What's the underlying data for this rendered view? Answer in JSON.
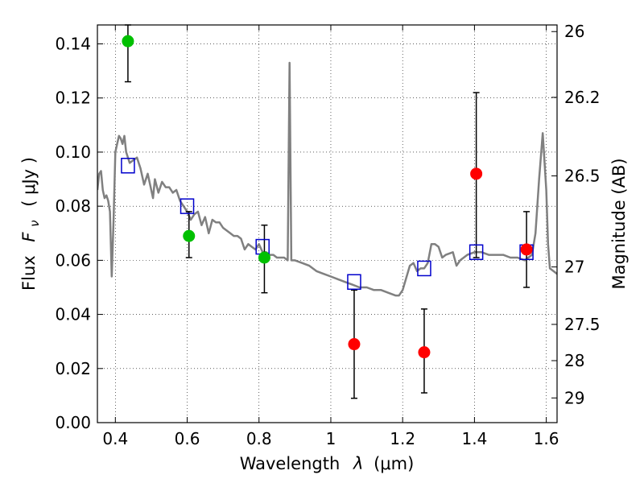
{
  "chart_data": {
    "type": "scatter",
    "xlabel_text": "Wavelength",
    "xlabel_symbol": "λ",
    "xlabel_unit": "(μm)",
    "ylabel_text": "Flux",
    "ylabel_symbol": "F",
    "ylabel_subscript": "ν",
    "ylabel_unit": "( μJy )",
    "y2label": "Magnitude (AB)",
    "xlim": [
      0.35,
      1.63
    ],
    "ylim": [
      0.0,
      0.147
    ],
    "grid": true,
    "xticks": [
      {
        "value": 0.4,
        "label": "0.4"
      },
      {
        "value": 0.6,
        "label": "0.6"
      },
      {
        "value": 0.8,
        "label": "0.8"
      },
      {
        "value": 1.0,
        "label": "1"
      },
      {
        "value": 1.2,
        "label": "1.2"
      },
      {
        "value": 1.4,
        "label": "1.4"
      },
      {
        "value": 1.6,
        "label": "1.6"
      }
    ],
    "yticks": [
      {
        "value": 0.0,
        "label": "0.00"
      },
      {
        "value": 0.02,
        "label": "0.02"
      },
      {
        "value": 0.04,
        "label": "0.04"
      },
      {
        "value": 0.06,
        "label": "0.06"
      },
      {
        "value": 0.08,
        "label": "0.08"
      },
      {
        "value": 0.1,
        "label": "0.10"
      },
      {
        "value": 0.12,
        "label": "0.12"
      },
      {
        "value": 0.14,
        "label": "0.14"
      }
    ],
    "y2ticks": [
      {
        "mag": 26,
        "label": "26"
      },
      {
        "mag": 26.2,
        "label": "26.2"
      },
      {
        "mag": 26.5,
        "label": "26.5"
      },
      {
        "mag": 27,
        "label": "27"
      },
      {
        "mag": 27.5,
        "label": "27.5"
      },
      {
        "mag": 28,
        "label": "28"
      },
      {
        "mag": 29,
        "label": "29"
      }
    ],
    "spectrum": {
      "color": "#808080",
      "points": [
        [
          0.35,
          0.086
        ],
        [
          0.355,
          0.092
        ],
        [
          0.36,
          0.093
        ],
        [
          0.365,
          0.086
        ],
        [
          0.37,
          0.083
        ],
        [
          0.375,
          0.084
        ],
        [
          0.38,
          0.082
        ],
        [
          0.385,
          0.078
        ],
        [
          0.39,
          0.054
        ],
        [
          0.395,
          0.075
        ],
        [
          0.4,
          0.1
        ],
        [
          0.405,
          0.103
        ],
        [
          0.41,
          0.106
        ],
        [
          0.415,
          0.105
        ],
        [
          0.42,
          0.103
        ],
        [
          0.425,
          0.106
        ],
        [
          0.43,
          0.1
        ],
        [
          0.44,
          0.096
        ],
        [
          0.45,
          0.097
        ],
        [
          0.46,
          0.098
        ],
        [
          0.47,
          0.094
        ],
        [
          0.48,
          0.088
        ],
        [
          0.49,
          0.092
        ],
        [
          0.5,
          0.086
        ],
        [
          0.505,
          0.083
        ],
        [
          0.51,
          0.09
        ],
        [
          0.52,
          0.085
        ],
        [
          0.53,
          0.089
        ],
        [
          0.54,
          0.087
        ],
        [
          0.55,
          0.087
        ],
        [
          0.56,
          0.085
        ],
        [
          0.57,
          0.086
        ],
        [
          0.58,
          0.082
        ],
        [
          0.59,
          0.08
        ],
        [
          0.6,
          0.078
        ],
        [
          0.61,
          0.075
        ],
        [
          0.62,
          0.077
        ],
        [
          0.63,
          0.078
        ],
        [
          0.64,
          0.073
        ],
        [
          0.65,
          0.076
        ],
        [
          0.66,
          0.07
        ],
        [
          0.67,
          0.075
        ],
        [
          0.68,
          0.074
        ],
        [
          0.69,
          0.074
        ],
        [
          0.7,
          0.072
        ],
        [
          0.71,
          0.071
        ],
        [
          0.72,
          0.07
        ],
        [
          0.73,
          0.069
        ],
        [
          0.74,
          0.069
        ],
        [
          0.75,
          0.068
        ],
        [
          0.76,
          0.064
        ],
        [
          0.77,
          0.066
        ],
        [
          0.78,
          0.065
        ],
        [
          0.79,
          0.064
        ],
        [
          0.8,
          0.066
        ],
        [
          0.81,
          0.063
        ],
        [
          0.82,
          0.063
        ],
        [
          0.83,
          0.062
        ],
        [
          0.84,
          0.062
        ],
        [
          0.85,
          0.061
        ],
        [
          0.86,
          0.061
        ],
        [
          0.87,
          0.061
        ],
        [
          0.88,
          0.06
        ],
        [
          0.885,
          0.133
        ],
        [
          0.89,
          0.06
        ],
        [
          0.9,
          0.06
        ],
        [
          0.92,
          0.059
        ],
        [
          0.94,
          0.058
        ],
        [
          0.96,
          0.056
        ],
        [
          0.98,
          0.055
        ],
        [
          1.0,
          0.054
        ],
        [
          1.02,
          0.053
        ],
        [
          1.04,
          0.052
        ],
        [
          1.06,
          0.051
        ],
        [
          1.08,
          0.05
        ],
        [
          1.1,
          0.05
        ],
        [
          1.12,
          0.049
        ],
        [
          1.14,
          0.049
        ],
        [
          1.16,
          0.048
        ],
        [
          1.18,
          0.047
        ],
        [
          1.19,
          0.047
        ],
        [
          1.2,
          0.049
        ],
        [
          1.22,
          0.058
        ],
        [
          1.23,
          0.059
        ],
        [
          1.24,
          0.056
        ],
        [
          1.25,
          0.057
        ],
        [
          1.26,
          0.057
        ],
        [
          1.27,
          0.059
        ],
        [
          1.28,
          0.066
        ],
        [
          1.29,
          0.066
        ],
        [
          1.3,
          0.065
        ],
        [
          1.31,
          0.061
        ],
        [
          1.32,
          0.062
        ],
        [
          1.34,
          0.063
        ],
        [
          1.35,
          0.058
        ],
        [
          1.36,
          0.06
        ],
        [
          1.38,
          0.062
        ],
        [
          1.4,
          0.063
        ],
        [
          1.42,
          0.063
        ],
        [
          1.44,
          0.062
        ],
        [
          1.46,
          0.062
        ],
        [
          1.48,
          0.062
        ],
        [
          1.5,
          0.061
        ],
        [
          1.52,
          0.061
        ],
        [
          1.54,
          0.06
        ],
        [
          1.56,
          0.062
        ],
        [
          1.57,
          0.07
        ],
        [
          1.58,
          0.09
        ],
        [
          1.59,
          0.107
        ],
        [
          1.6,
          0.086
        ],
        [
          1.605,
          0.066
        ],
        [
          1.61,
          0.057
        ],
        [
          1.62,
          0.056
        ],
        [
          1.63,
          0.055
        ]
      ]
    },
    "model_photometry": {
      "marker": "open-square",
      "color": "#0000cc",
      "points": [
        {
          "x": 0.435,
          "y": 0.095
        },
        {
          "x": 0.6,
          "y": 0.08
        },
        {
          "x": 0.81,
          "y": 0.065
        },
        {
          "x": 1.065,
          "y": 0.052
        },
        {
          "x": 1.26,
          "y": 0.057
        },
        {
          "x": 1.405,
          "y": 0.063
        },
        {
          "x": 1.545,
          "y": 0.063
        }
      ]
    },
    "detections": {
      "marker": "filled-circle",
      "color": "#00c000",
      "points": [
        {
          "x": 0.435,
          "y": 0.141,
          "ylo": 0.126,
          "yhi": 0.147
        },
        {
          "x": 0.605,
          "y": 0.069,
          "ylo": 0.061,
          "yhi": 0.078
        },
        {
          "x": 0.815,
          "y": 0.061,
          "ylo": 0.048,
          "yhi": 0.073
        }
      ]
    },
    "upper_limits": {
      "marker": "filled-circle",
      "color": "#ff0000",
      "points": [
        {
          "x": 1.065,
          "y": 0.029,
          "ylo": 0.009,
          "yhi": 0.049
        },
        {
          "x": 1.26,
          "y": 0.026,
          "ylo": 0.011,
          "yhi": 0.042
        },
        {
          "x": 1.405,
          "y": 0.092,
          "ylo": 0.061,
          "yhi": 0.122
        },
        {
          "x": 1.545,
          "y": 0.064,
          "ylo": 0.05,
          "yhi": 0.078
        }
      ]
    }
  }
}
